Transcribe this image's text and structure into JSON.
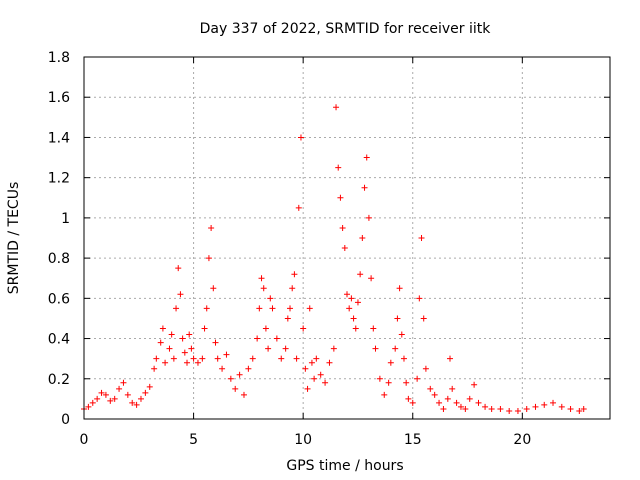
{
  "chart_data": {
    "type": "scatter",
    "title": "Day 337 of 2022, SRMTID for receiver iitk",
    "xlabel": "GPS time / hours",
    "ylabel": "SRMTID / TECUs",
    "xlim": [
      0,
      24
    ],
    "ylim": [
      0,
      1.8
    ],
    "xticks": [
      0,
      5,
      10,
      15,
      20
    ],
    "xtick_labels": [
      "0",
      "5",
      "10",
      "15",
      "20"
    ],
    "yticks": [
      0,
      0.2,
      0.4,
      0.6,
      0.8,
      1,
      1.2,
      1.4,
      1.6,
      1.8
    ],
    "ytick_labels": [
      "0",
      "0.2",
      "0.4",
      "0.6",
      "0.8",
      "1",
      "1.2",
      "1.4",
      "1.6",
      "1.8"
    ],
    "grid": true,
    "marker": "+",
    "series": [
      {
        "name": "SRMTID",
        "color": "#ff0000",
        "points": [
          [
            0.0,
            0.05
          ],
          [
            0.2,
            0.06
          ],
          [
            0.4,
            0.08
          ],
          [
            0.6,
            0.1
          ],
          [
            0.8,
            0.13
          ],
          [
            1.0,
            0.12
          ],
          [
            1.2,
            0.09
          ],
          [
            1.4,
            0.1
          ],
          [
            1.6,
            0.15
          ],
          [
            1.8,
            0.18
          ],
          [
            2.0,
            0.12
          ],
          [
            2.2,
            0.08
          ],
          [
            2.4,
            0.07
          ],
          [
            2.6,
            0.1
          ],
          [
            2.8,
            0.13
          ],
          [
            3.0,
            0.16
          ],
          [
            3.2,
            0.25
          ],
          [
            3.3,
            0.3
          ],
          [
            3.5,
            0.38
          ],
          [
            3.6,
            0.45
          ],
          [
            3.7,
            0.28
          ],
          [
            3.9,
            0.35
          ],
          [
            4.0,
            0.42
          ],
          [
            4.1,
            0.3
          ],
          [
            4.2,
            0.55
          ],
          [
            4.3,
            0.75
          ],
          [
            4.4,
            0.62
          ],
          [
            4.5,
            0.4
          ],
          [
            4.6,
            0.33
          ],
          [
            4.7,
            0.28
          ],
          [
            4.8,
            0.42
          ],
          [
            4.9,
            0.35
          ],
          [
            5.0,
            0.3
          ],
          [
            5.2,
            0.28
          ],
          [
            5.4,
            0.3
          ],
          [
            5.5,
            0.45
          ],
          [
            5.6,
            0.55
          ],
          [
            5.7,
            0.8
          ],
          [
            5.8,
            0.95
          ],
          [
            5.9,
            0.65
          ],
          [
            6.0,
            0.38
          ],
          [
            6.1,
            0.3
          ],
          [
            6.3,
            0.25
          ],
          [
            6.5,
            0.32
          ],
          [
            6.7,
            0.2
          ],
          [
            6.9,
            0.15
          ],
          [
            7.1,
            0.22
          ],
          [
            7.3,
            0.12
          ],
          [
            7.5,
            0.25
          ],
          [
            7.7,
            0.3
          ],
          [
            7.9,
            0.4
          ],
          [
            8.0,
            0.55
          ],
          [
            8.1,
            0.7
          ],
          [
            8.2,
            0.65
          ],
          [
            8.3,
            0.45
          ],
          [
            8.4,
            0.35
          ],
          [
            8.5,
            0.6
          ],
          [
            8.6,
            0.55
          ],
          [
            8.8,
            0.4
          ],
          [
            9.0,
            0.3
          ],
          [
            9.2,
            0.35
          ],
          [
            9.3,
            0.5
          ],
          [
            9.4,
            0.55
          ],
          [
            9.5,
            0.65
          ],
          [
            9.6,
            0.72
          ],
          [
            9.7,
            0.3
          ],
          [
            9.8,
            1.05
          ],
          [
            9.9,
            1.4
          ],
          [
            10.0,
            0.45
          ],
          [
            10.1,
            0.25
          ],
          [
            10.2,
            0.15
          ],
          [
            10.3,
            0.55
          ],
          [
            10.4,
            0.28
          ],
          [
            10.5,
            0.2
          ],
          [
            10.6,
            0.3
          ],
          [
            10.8,
            0.22
          ],
          [
            11.0,
            0.18
          ],
          [
            11.2,
            0.28
          ],
          [
            11.4,
            0.35
          ],
          [
            11.5,
            1.55
          ],
          [
            11.6,
            1.25
          ],
          [
            11.7,
            1.1
          ],
          [
            11.8,
            0.95
          ],
          [
            11.9,
            0.85
          ],
          [
            12.0,
            0.62
          ],
          [
            12.1,
            0.55
          ],
          [
            12.2,
            0.6
          ],
          [
            12.3,
            0.5
          ],
          [
            12.4,
            0.45
          ],
          [
            12.5,
            0.58
          ],
          [
            12.6,
            0.72
          ],
          [
            12.7,
            0.9
          ],
          [
            12.8,
            1.15
          ],
          [
            12.9,
            1.3
          ],
          [
            13.0,
            1.0
          ],
          [
            13.1,
            0.7
          ],
          [
            13.2,
            0.45
          ],
          [
            13.3,
            0.35
          ],
          [
            13.5,
            0.2
          ],
          [
            13.7,
            0.12
          ],
          [
            13.9,
            0.18
          ],
          [
            14.0,
            0.28
          ],
          [
            14.2,
            0.35
          ],
          [
            14.3,
            0.5
          ],
          [
            14.4,
            0.65
          ],
          [
            14.5,
            0.42
          ],
          [
            14.6,
            0.3
          ],
          [
            14.7,
            0.18
          ],
          [
            14.8,
            0.1
          ],
          [
            15.0,
            0.08
          ],
          [
            15.2,
            0.2
          ],
          [
            15.3,
            0.6
          ],
          [
            15.4,
            0.9
          ],
          [
            15.5,
            0.5
          ],
          [
            15.6,
            0.25
          ],
          [
            15.8,
            0.15
          ],
          [
            16.0,
            0.12
          ],
          [
            16.2,
            0.08
          ],
          [
            16.4,
            0.05
          ],
          [
            16.6,
            0.1
          ],
          [
            16.7,
            0.3
          ],
          [
            16.8,
            0.15
          ],
          [
            17.0,
            0.08
          ],
          [
            17.2,
            0.06
          ],
          [
            17.4,
            0.05
          ],
          [
            17.6,
            0.1
          ],
          [
            17.8,
            0.17
          ],
          [
            18.0,
            0.08
          ],
          [
            18.3,
            0.06
          ],
          [
            18.6,
            0.05
          ],
          [
            19.0,
            0.05
          ],
          [
            19.4,
            0.04
          ],
          [
            19.8,
            0.04
          ],
          [
            20.2,
            0.05
          ],
          [
            20.6,
            0.06
          ],
          [
            21.0,
            0.07
          ],
          [
            21.4,
            0.08
          ],
          [
            21.8,
            0.06
          ],
          [
            22.2,
            0.05
          ],
          [
            22.6,
            0.04
          ],
          [
            22.8,
            0.05
          ]
        ]
      }
    ]
  }
}
